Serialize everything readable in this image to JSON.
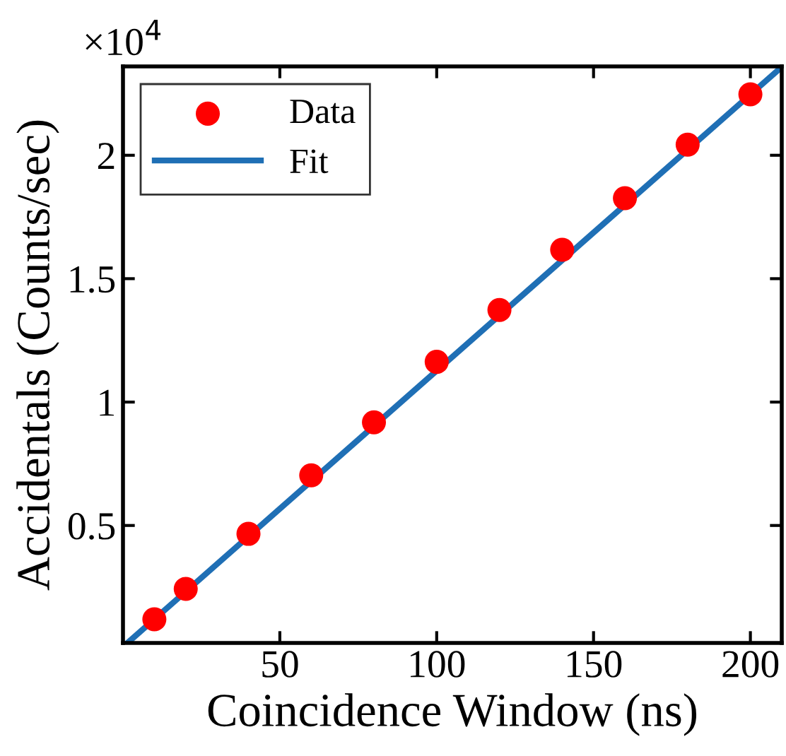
{
  "chart_data": {
    "type": "scatter",
    "xlabel": "Coincidence Window (ns)",
    "ylabel": "Accidentals (Counts/sec)",
    "annotations": [
      "×10$^{4}$"
    ],
    "xlim": [
      0,
      210
    ],
    "xticks": [
      50,
      100,
      150,
      200
    ],
    "ylim": [
      0.024,
      2.36
    ],
    "yticks": [
      0.5,
      1,
      1.5,
      2
    ],
    "x": [
      10,
      20,
      40,
      60,
      80,
      100,
      120,
      140,
      160,
      180,
      200
    ],
    "series": [
      {
        "name": "Data",
        "color": "#ff0000",
        "marker": "circle",
        "values": [
          0.12,
          0.243,
          0.466,
          0.703,
          0.918,
          1.163,
          1.373,
          1.617,
          1.826,
          2.043,
          2.247
        ]
      },
      {
        "name": "Fit",
        "type": "line",
        "color": "#1f6fb5",
        "line_style": "solid",
        "marker": "none",
        "x": [
          1.5,
          210
        ],
        "values": [
          0.025,
          2.358
        ]
      }
    ],
    "legend": "top left",
    "grid": false
  }
}
